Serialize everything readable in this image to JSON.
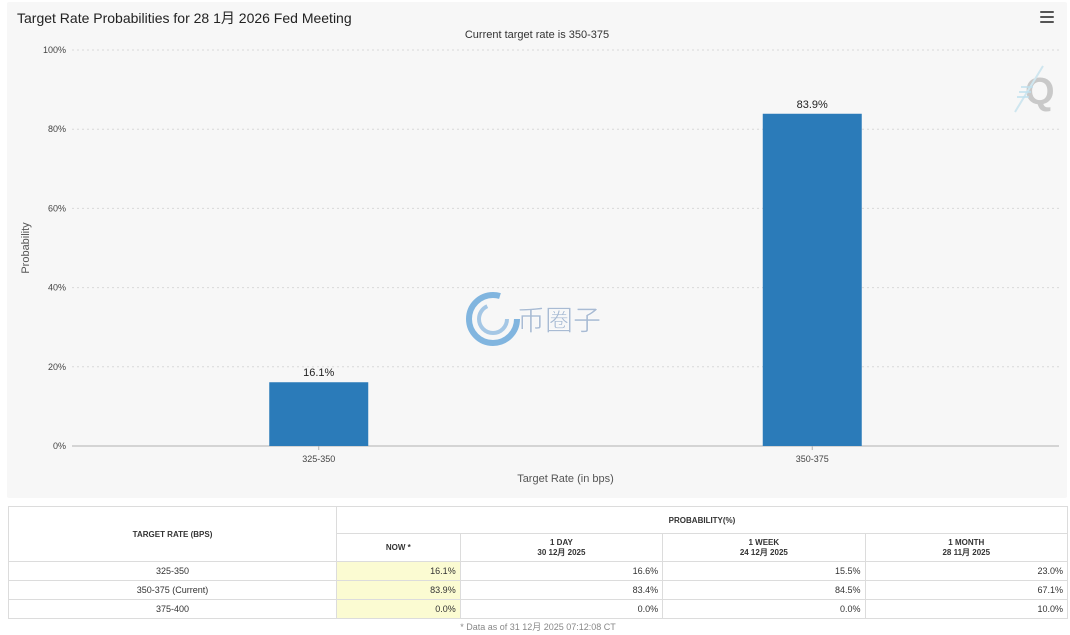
{
  "chart": {
    "title": "Target Rate Probabilities for 28 1月 2026 Fed Meeting",
    "subtitle": "Current target rate is 350-375",
    "menu_icon": "hamburger-menu-icon",
    "watermark_logo_text": "币圈子"
  },
  "chart_data": {
    "type": "bar",
    "title": "Target Rate Probabilities for 28 1月 2026 Fed Meeting",
    "subtitle": "Current target rate is 350-375",
    "categories": [
      "325-350",
      "350-375"
    ],
    "values": [
      16.1,
      83.9
    ],
    "data_labels": [
      "16.1%",
      "83.9%"
    ],
    "xlabel": "Target Rate (in bps)",
    "ylabel": "Probability",
    "ylim": [
      0,
      100
    ],
    "yticks": [
      0,
      20,
      40,
      60,
      80,
      100
    ],
    "ytick_labels": [
      "0%",
      "20%",
      "40%",
      "60%",
      "80%",
      "100%"
    ],
    "grid": true,
    "bar_color": "#2b7bb9",
    "legend": "none"
  },
  "table": {
    "header_target": "TARGET RATE (BPS)",
    "header_probability": "PROBABILITY(%)",
    "columns": [
      {
        "label": "NOW *",
        "date": ""
      },
      {
        "label": "1 DAY",
        "date": "30 12月 2025"
      },
      {
        "label": "1 WEEK",
        "date": "24 12月 2025"
      },
      {
        "label": "1 MONTH",
        "date": "28 11月 2025"
      }
    ],
    "rows": [
      {
        "rate": "325-350",
        "values": [
          "16.1%",
          "16.6%",
          "15.5%",
          "23.0%"
        ]
      },
      {
        "rate": "350-375 (Current)",
        "values": [
          "83.9%",
          "83.4%",
          "84.5%",
          "67.1%"
        ]
      },
      {
        "rate": "375-400",
        "values": [
          "0.0%",
          "0.0%",
          "0.0%",
          "10.0%"
        ]
      }
    ],
    "footnote": "* Data as of 31 12月 2025 07:12:08 CT"
  }
}
